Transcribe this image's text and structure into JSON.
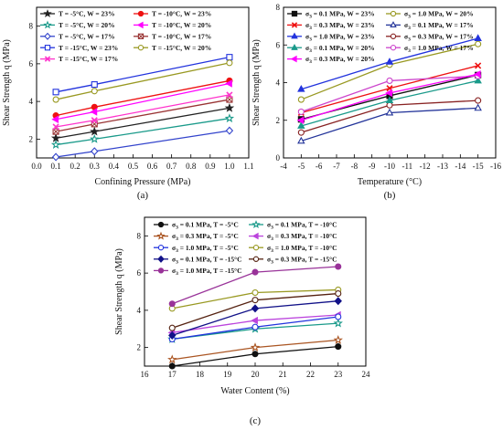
{
  "panels": [
    {
      "caption": "(a)",
      "type": "line",
      "xlabel": "Confining Pressure (MPa)",
      "ylabel": "Shear Strength q (MPa)",
      "xlim": [
        0.0,
        1.1
      ],
      "ylim": [
        1,
        9
      ],
      "xticks": [
        0.0,
        0.1,
        0.2,
        0.3,
        0.4,
        0.5,
        0.6,
        0.7,
        0.8,
        0.9,
        1.0,
        1.1
      ],
      "xtick_labels": [
        "0.0",
        "0.1",
        "0.2",
        "0.3",
        "0.4",
        "0.5",
        "0.6",
        "0.7",
        "0.8",
        "0.9",
        "1.0",
        "1.1"
      ],
      "yticks": [
        2,
        4,
        6,
        8
      ],
      "ytick_labels": [
        "2",
        "4",
        "6",
        "8"
      ],
      "legend_cols": 2,
      "series": [
        {
          "label": "T = -5°C, W = 23%",
          "color": "#222222",
          "marker": "star",
          "filled": true,
          "x": [
            0.1,
            0.3,
            1.0
          ],
          "y": [
            2.05,
            2.4,
            3.65
          ]
        },
        {
          "label": "T = -10°C, W = 23%",
          "color": "#ee1111",
          "marker": "circle",
          "filled": true,
          "x": [
            0.1,
            0.3,
            1.0
          ],
          "y": [
            3.25,
            3.7,
            5.1
          ]
        },
        {
          "label": "T = -5°C, W = 20%",
          "color": "#1a9a8a",
          "marker": "star",
          "filled": false,
          "x": [
            0.1,
            0.3,
            1.0
          ],
          "y": [
            1.7,
            2.0,
            3.1
          ]
        },
        {
          "label": "T = -10°C, W = 20%",
          "color": "#ff00ff",
          "marker": "triangle-left",
          "filled": true,
          "x": [
            0.1,
            0.3,
            1.0
          ],
          "y": [
            3.05,
            3.45,
            4.95
          ]
        },
        {
          "label": "T = -5°C, W = 17%",
          "color": "#3344cc",
          "marker": "diamond",
          "filled": false,
          "x": [
            0.1,
            0.3,
            1.0
          ],
          "y": [
            1.05,
            1.35,
            2.45
          ]
        },
        {
          "label": "T = -10°C, W = 17%",
          "color": "#993333",
          "marker": "square-cross",
          "filled": false,
          "x": [
            0.1,
            0.3,
            1.0
          ],
          "y": [
            2.4,
            2.8,
            4.1
          ]
        },
        {
          "label": "T = -15°C, W = 23%",
          "color": "#2233dd",
          "marker": "square",
          "filled": false,
          "x": [
            0.1,
            0.3,
            1.0
          ],
          "y": [
            4.5,
            4.9,
            6.35
          ]
        },
        {
          "label": "T = -15°C, W = 20%",
          "color": "#999922",
          "marker": "circle",
          "filled": false,
          "x": [
            0.1,
            0.3,
            1.0
          ],
          "y": [
            4.1,
            4.55,
            6.05
          ]
        },
        {
          "label": "T = -15°C, W = 17%",
          "color": "#ff33cc",
          "marker": "cross",
          "filled": false,
          "x": [
            0.1,
            0.3,
            1.0
          ],
          "y": [
            2.65,
            3.0,
            4.35
          ]
        }
      ]
    },
    {
      "caption": "(b)",
      "type": "line",
      "xlabel": "Temperature (°C)",
      "ylabel": "Shear Strength q (MPa)",
      "xlim": [
        -4,
        -16
      ],
      "ylim": [
        0,
        8
      ],
      "xticks": [
        -4,
        -5,
        -6,
        -7,
        -8,
        -9,
        -10,
        -11,
        -12,
        -13,
        -14,
        -15,
        -16
      ],
      "xtick_labels": [
        "-4",
        "-5",
        "-6",
        "-7",
        "-8",
        "-9",
        "-10",
        "-11",
        "-12",
        "-13",
        "-14",
        "-15",
        "-16"
      ],
      "yticks": [
        0,
        2,
        4,
        6,
        8
      ],
      "ytick_labels": [
        "0",
        "2",
        "4",
        "6",
        "8"
      ],
      "legend_cols": 2,
      "series": [
        {
          "label": "σ3 = 0.1 MPa, W = 23%",
          "color": "#111111",
          "marker": "square",
          "filled": true,
          "x": [
            -5,
            -10,
            -15
          ],
          "y": [
            2.05,
            3.3,
            4.4
          ]
        },
        {
          "label": "σ3 = 1.0 MPa, W = 20%",
          "color": "#999922",
          "marker": "circle",
          "filled": false,
          "x": [
            -5,
            -10,
            -15
          ],
          "y": [
            3.1,
            4.95,
            6.05
          ]
        },
        {
          "label": "σ3 = 0.3 MPa, W = 23%",
          "color": "#ee1111",
          "marker": "cross",
          "filled": false,
          "x": [
            -5,
            -10,
            -15
          ],
          "y": [
            2.4,
            3.7,
            4.9
          ]
        },
        {
          "label": "σ3 = 0.1 MPa, W = 17%",
          "color": "#223399",
          "marker": "triangle",
          "filled": false,
          "x": [
            -5,
            -10,
            -15
          ],
          "y": [
            0.9,
            2.4,
            2.65
          ]
        },
        {
          "label": "σ3 = 1.0 MPa, W = 23%",
          "color": "#2233dd",
          "marker": "triangle",
          "filled": true,
          "x": [
            -5,
            -10,
            -15
          ],
          "y": [
            3.65,
            5.1,
            6.35
          ]
        },
        {
          "label": "σ3 = 0.3 MPa, W = 17%",
          "color": "#882222",
          "marker": "circle",
          "filled": false,
          "x": [
            -5,
            -10,
            -15
          ],
          "y": [
            1.35,
            2.8,
            3.05
          ]
        },
        {
          "label": "σ3 = 0.1 MPa, W = 20%",
          "color": "#1a9a8a",
          "marker": "triangle",
          "filled": true,
          "x": [
            -5,
            -10,
            -15
          ],
          "y": [
            1.7,
            3.05,
            4.1
          ]
        },
        {
          "label": "σ3 = 1.0 MPa, W = 17%",
          "color": "#cc44cc",
          "marker": "circle",
          "filled": false,
          "x": [
            -5,
            -10,
            -15
          ],
          "y": [
            2.45,
            4.1,
            4.35
          ]
        },
        {
          "label": "σ3 = 0.3 MPa, W = 20%",
          "color": "#ff00ff",
          "marker": "triangle-left",
          "filled": true,
          "x": [
            -5,
            -10,
            -15
          ],
          "y": [
            2.0,
            3.45,
            4.45
          ]
        }
      ]
    },
    {
      "caption": "(c)",
      "type": "line",
      "xlabel": "Water Content (%)",
      "ylabel": "Shear Strength q (MPa)",
      "xlim": [
        16,
        24
      ],
      "ylim": [
        1,
        9
      ],
      "xticks": [
        16,
        17,
        18,
        19,
        20,
        21,
        22,
        23,
        24
      ],
      "xtick_labels": [
        "16",
        "17",
        "18",
        "19",
        "20",
        "21",
        "22",
        "23",
        "24"
      ],
      "yticks": [
        2,
        4,
        6,
        8
      ],
      "ytick_labels": [
        "2",
        "4",
        "6",
        "8"
      ],
      "legend_cols": 2,
      "series": [
        {
          "label": "σ3 = 0.1 MPa, T = -5°C",
          "color": "#111111",
          "marker": "circle",
          "filled": true,
          "x": [
            17,
            20,
            23
          ],
          "y": [
            1.0,
            1.65,
            2.05
          ]
        },
        {
          "label": "σ3 = 0.1 MPa, T = -10°C",
          "color": "#1a9a8a",
          "marker": "star",
          "filled": false,
          "x": [
            17,
            20,
            23
          ],
          "y": [
            2.45,
            3.0,
            3.3
          ]
        },
        {
          "label": "σ3 = 0.3 MPa, T = -5°C",
          "color": "#aa5522",
          "marker": "star",
          "filled": false,
          "x": [
            17,
            20,
            23
          ],
          "y": [
            1.35,
            2.0,
            2.4
          ]
        },
        {
          "label": "σ3 = 0.3 MPa, T = -10°C",
          "color": "#bb44dd",
          "marker": "triangle-left",
          "filled": true,
          "x": [
            17,
            20,
            23
          ],
          "y": [
            2.8,
            3.45,
            3.75
          ]
        },
        {
          "label": "σ3 = 1.0 MPa, T = -5°C",
          "color": "#2233dd",
          "marker": "circle",
          "filled": false,
          "x": [
            17,
            20,
            23
          ],
          "y": [
            2.45,
            3.1,
            3.65
          ]
        },
        {
          "label": "σ3 = 1.0 MPa, T = -10°C",
          "color": "#999922",
          "marker": "circle",
          "filled": false,
          "x": [
            17,
            20,
            23
          ],
          "y": [
            4.1,
            4.95,
            5.1
          ]
        },
        {
          "label": "σ3 = 0.1 MPa, T = -15°C",
          "color": "#111188",
          "marker": "diamond",
          "filled": true,
          "x": [
            17,
            20,
            23
          ],
          "y": [
            2.65,
            4.1,
            4.5
          ]
        },
        {
          "label": "σ3 = 0.3 MPa, T = -15°C",
          "color": "#552211",
          "marker": "circle",
          "filled": false,
          "x": [
            17,
            20,
            23
          ],
          "y": [
            3.05,
            4.55,
            4.9
          ]
        },
        {
          "label": "σ3 = 1.0 MPa, T = -15°C",
          "color": "#993399",
          "marker": "circle",
          "filled": true,
          "x": [
            17,
            20,
            23
          ],
          "y": [
            4.35,
            6.05,
            6.35
          ]
        }
      ]
    }
  ],
  "chart_data": [
    {
      "type": "line",
      "title": "",
      "xlabel": "Confining Pressure (MPa)",
      "ylabel": "Shear Strength q (MPa)",
      "xlim": [
        0.0,
        1.1
      ],
      "ylim": [
        1,
        9
      ],
      "x": [
        0.1,
        0.3,
        1.0
      ],
      "series": [
        {
          "name": "T = -5°C, W = 23%",
          "values": [
            2.05,
            2.4,
            3.65
          ]
        },
        {
          "name": "T = -10°C, W = 23%",
          "values": [
            3.25,
            3.7,
            5.1
          ]
        },
        {
          "name": "T = -5°C, W = 20%",
          "values": [
            1.7,
            2.0,
            3.1
          ]
        },
        {
          "name": "T = -10°C, W = 20%",
          "values": [
            3.05,
            3.45,
            4.95
          ]
        },
        {
          "name": "T = -5°C, W = 17%",
          "values": [
            1.05,
            1.35,
            2.45
          ]
        },
        {
          "name": "T = -10°C, W = 17%",
          "values": [
            2.4,
            2.8,
            4.1
          ]
        },
        {
          "name": "T = -15°C, W = 23%",
          "values": [
            4.5,
            4.9,
            6.35
          ]
        },
        {
          "name": "T = -15°C, W = 20%",
          "values": [
            4.1,
            4.55,
            6.05
          ]
        },
        {
          "name": "T = -15°C, W = 17%",
          "values": [
            2.65,
            3.0,
            4.35
          ]
        }
      ],
      "legend": "top-left",
      "grid": false
    },
    {
      "type": "line",
      "title": "",
      "xlabel": "Temperature (°C)",
      "ylabel": "Shear Strength q (MPa)",
      "xlim": [
        -4,
        -16
      ],
      "ylim": [
        0,
        8
      ],
      "x": [
        -5,
        -10,
        -15
      ],
      "series": [
        {
          "name": "σ3 = 0.1 MPa, W = 23%",
          "values": [
            2.05,
            3.3,
            4.4
          ]
        },
        {
          "name": "σ3 = 1.0 MPa, W = 20%",
          "values": [
            3.1,
            4.95,
            6.05
          ]
        },
        {
          "name": "σ3 = 0.3 MPa, W = 23%",
          "values": [
            2.4,
            3.7,
            4.9
          ]
        },
        {
          "name": "σ3 = 0.1 MPa, W = 17%",
          "values": [
            0.9,
            2.4,
            2.65
          ]
        },
        {
          "name": "σ3 = 1.0 MPa, W = 23%",
          "values": [
            3.65,
            5.1,
            6.35
          ]
        },
        {
          "name": "σ3 = 0.3 MPa, W = 17%",
          "values": [
            1.35,
            2.8,
            3.05
          ]
        },
        {
          "name": "σ3 = 0.1 MPa, W = 20%",
          "values": [
            1.7,
            3.05,
            4.1
          ]
        },
        {
          "name": "σ3 = 1.0 MPa, W = 17%",
          "values": [
            2.45,
            4.1,
            4.35
          ]
        },
        {
          "name": "σ3 = 0.3 MPa, W = 20%",
          "values": [
            2.0,
            3.45,
            4.45
          ]
        }
      ],
      "legend": "top-left",
      "grid": false
    },
    {
      "type": "line",
      "title": "",
      "xlabel": "Water Content (%)",
      "ylabel": "Shear Strength q (MPa)",
      "xlim": [
        16,
        24
      ],
      "ylim": [
        1,
        9
      ],
      "x": [
        17,
        20,
        23
      ],
      "series": [
        {
          "name": "σ3 = 0.1 MPa, T = -5°C",
          "values": [
            1.0,
            1.65,
            2.05
          ]
        },
        {
          "name": "σ3 = 0.1 MPa, T = -10°C",
          "values": [
            2.45,
            3.0,
            3.3
          ]
        },
        {
          "name": "σ3 = 0.3 MPa, T = -5°C",
          "values": [
            1.35,
            2.0,
            2.4
          ]
        },
        {
          "name": "σ3 = 0.3 MPa, T = -10°C",
          "values": [
            2.8,
            3.45,
            3.75
          ]
        },
        {
          "name": "σ3 = 1.0 MPa, T = -5°C",
          "values": [
            2.45,
            3.1,
            3.65
          ]
        },
        {
          "name": "σ3 = 1.0 MPa, T = -10°C",
          "values": [
            4.1,
            4.95,
            5.1
          ]
        },
        {
          "name": "σ3 = 0.1 MPa, T = -15°C",
          "values": [
            2.65,
            4.1,
            4.5
          ]
        },
        {
          "name": "σ3 = 0.3 MPa, T = -15°C",
          "values": [
            3.05,
            4.55,
            4.9
          ]
        },
        {
          "name": "σ3 = 1.0 MPa, T = -15°C",
          "values": [
            4.35,
            6.05,
            6.35
          ]
        }
      ],
      "legend": "top-left",
      "grid": false
    }
  ]
}
